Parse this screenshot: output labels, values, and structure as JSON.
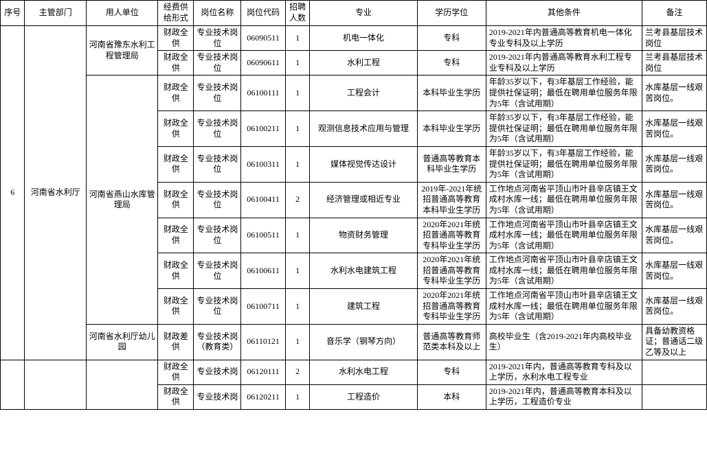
{
  "columns": [
    "序号",
    "主管部门",
    "用人单位",
    "经费供给形式",
    "岗位名称",
    "岗位代码",
    "招聘人数",
    "专业",
    "学历学位",
    "其他条件",
    "备注"
  ],
  "widths": [
    34,
    86,
    100,
    50,
    66,
    62,
    34,
    150,
    96,
    218,
    90
  ],
  "seq": "6",
  "dept": "河南省水利厅",
  "employers": {
    "e1": {
      "name": "河南省豫东水利工程管理局",
      "span": 2
    },
    "e2": {
      "name": "河南省燕山水库管理局",
      "span": 7
    },
    "e3": {
      "name": "河南省水利厅幼儿园",
      "span": 1
    }
  },
  "rows": [
    {
      "emp": "e1",
      "fund": "财政全供",
      "post": "专业技术岗位",
      "code": "06090511",
      "num": "1",
      "major": "机电一体化",
      "edu": "专科",
      "other": "2019-2021年内普通高等教育机电一体化专业专科及以上学历",
      "remark": "兰考县基层技术岗位"
    },
    {
      "emp": "e1",
      "fund": "财政全供",
      "post": "专业技术岗位",
      "code": "06090611",
      "num": "1",
      "major": "水利工程",
      "edu": "专科",
      "other": "2019-2021年内普通高等教育水利工程专业专科及以上学历",
      "remark": "兰考县基层技术岗位"
    },
    {
      "emp": "e2",
      "fund": "财政全供",
      "post": "专业技术岗位",
      "code": "06100111",
      "num": "1",
      "major": "工程会计",
      "edu": "本科毕业生学历",
      "other": "年龄35岁以下，有3年基层工作经验，能提供社保证明；最低在聘用单位服务年限为5年（含试用期）",
      "remark": "水库基层一线艰苦岗位。"
    },
    {
      "emp": "e2",
      "fund": "财政全供",
      "post": "专业技术岗位",
      "code": "06100211",
      "num": "1",
      "major": "观测信息技术应用与管理",
      "edu": "本科毕业生学历",
      "other": "年龄35岁以下，有3年基层工作经验，能提供社保证明；最低在聘用单位服务年限为5年（含试用期）",
      "remark": "水库基层一线艰苦岗位。"
    },
    {
      "emp": "e2",
      "fund": "财政全供",
      "post": "专业技术岗位",
      "code": "06100311",
      "num": "1",
      "major": "媒体视觉传达设计",
      "edu": "普通高等教育本科毕业生学历",
      "other": "年龄35岁以下，有3年基层工作经验，能提供社保证明；最低在聘用单位服务年限为5年（含试用期）",
      "remark": "水库基层一线艰苦岗位。"
    },
    {
      "emp": "e2",
      "fund": "财政全供",
      "post": "专业技术岗位",
      "code": "06100411",
      "num": "2",
      "major": "经济管理或相近专业",
      "edu": "2019年-2021年统招普通高等教育本科毕业生学历",
      "other": "工作地点河南省平顶山市叶县辛店镇王文成村水库一线；最低在聘用单位服务年限为5年（含试用期）",
      "remark": "水库基层一线艰苦岗位。"
    },
    {
      "emp": "e2",
      "fund": "财政全供",
      "post": "专业技术岗位",
      "code": "06100511",
      "num": "1",
      "major": "物资财务管理",
      "edu": "2020年2021年统招普通高等教育专科毕业生学历",
      "other": "工作地点河南省平顶山市叶县辛店镇王文成村水库一线；最低在聘用单位服务年限为5年（含试用期）",
      "remark": "水库基层一线艰苦岗位。"
    },
    {
      "emp": "e2",
      "fund": "财政全供",
      "post": "专业技术岗位",
      "code": "06100611",
      "num": "1",
      "major": "水利水电建筑工程",
      "edu": "2020年2021年统招普通高等教育专科毕业生学历",
      "other": "工作地点河南省平顶山市叶县辛店镇王文成村水库一线；最低在聘用单位服务年限为5年（含试用期）",
      "remark": "水库基层一线艰苦岗位。"
    },
    {
      "emp": "e2",
      "fund": "财政全供",
      "post": "专业技术岗位",
      "code": "06100711",
      "num": "1",
      "major": "建筑工程",
      "edu": "2020年2021年统招普通高等教育专科毕业生学历",
      "other": "工作地点河南省平顶山市叶县辛店镇王文成村水库一线；最低在聘用单位服务年限为5年（含试用期）",
      "remark": "水库基层一线艰苦岗位。"
    },
    {
      "emp": "e3",
      "fund": "财政差供",
      "post": "专业技术岗（教育类）",
      "code": "06110121",
      "num": "1",
      "major": "音乐学（钢琴方向）",
      "edu": "普通高等教育师范类本科及以上",
      "other": "高校毕业生（含2019-2021年内高校毕业生）",
      "remark": "具备幼教资格证；普通话二级乙等及以上"
    },
    {
      "emp": "",
      "fund": "财政全供",
      "post": "专业技术岗",
      "code": "06120111",
      "num": "2",
      "major": "水利水电工程",
      "edu": "专科",
      "other": "2019-2021年内，普通高等教育专科及以上学历，水利水电工程专业",
      "remark": ""
    },
    {
      "emp": "",
      "fund": "财政全供",
      "post": "专业技术岗",
      "code": "06120211",
      "num": "1",
      "major": "工程造价",
      "edu": "本科",
      "other": "2019-2021年内，普通高等教育本科及以上学历，工程造价专业",
      "remark": ""
    }
  ]
}
